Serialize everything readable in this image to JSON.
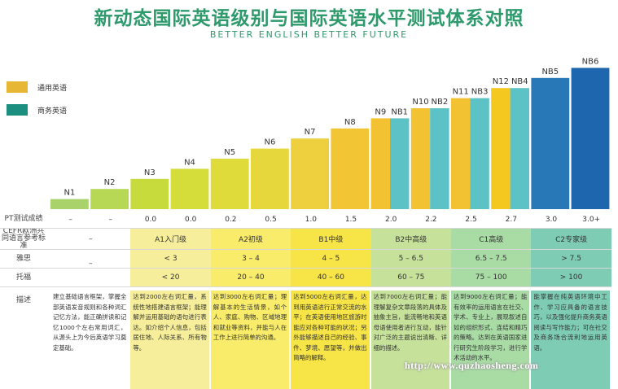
{
  "title": "新动态国际英语级别与国际英语水平测试体系对照",
  "subtitle": "BETTER ENGLISH BETTER FUTURE",
  "legend": [
    {
      "label": "通用英语",
      "color": "#e6b634"
    },
    {
      "label": "商务英语",
      "color": "#1c8f80"
    }
  ],
  "colors": {
    "general": "#e6b634",
    "business": "#5cc2c6",
    "bar_gradient": [
      "#a9d36a",
      "#b7d855",
      "#c8db3c",
      "#d4dd3a",
      "#dedb3a",
      "#e6d83c",
      "#eecf3e",
      "#f2c534",
      "#f3c12e",
      "#f0bb2a",
      "#f2b321",
      "#f5a51b",
      "#f39a1f",
      "#2a73b8",
      "#1a63a8"
    ]
  },
  "chart_data": {
    "type": "bar",
    "title": "新动态国际英语级别与国际英语水平测试体系对照",
    "categories": [
      "N1",
      "N2",
      "N3",
      "N4",
      "N5",
      "N6",
      "N7",
      "N8",
      "N9",
      "NB1",
      "N10",
      "NB2",
      "N11",
      "NB3",
      "N12",
      "NB4",
      "NB5",
      "NB6"
    ],
    "values": [
      1,
      2,
      3,
      4,
      5,
      6,
      7,
      8,
      9,
      9,
      10,
      10,
      11,
      11,
      12,
      12,
      13,
      14
    ],
    "series_type": [
      "general",
      "general",
      "general",
      "general",
      "general",
      "general",
      "general",
      "general",
      "general",
      "business",
      "general",
      "business",
      "general",
      "business",
      "general",
      "business",
      "business",
      "business"
    ],
    "ylim": [
      0,
      14.5
    ]
  },
  "pt_row": {
    "label": "PT测试成绩",
    "values": [
      "–",
      "–",
      "0.0",
      "0.0",
      "0.2",
      "0.5",
      "1.0",
      "1.5",
      "2.0",
      "2.2",
      "2.5",
      "2.7",
      "3.0",
      "3.0+"
    ]
  },
  "cefr_row": {
    "label": "CEFR欧洲共同语言参考标准",
    "values": [
      "–",
      "A1入门级",
      "A2初级",
      "B1中级",
      "B2中高级",
      "C1高级",
      "C2专家级"
    ]
  },
  "ielts_row": {
    "label": "雅思",
    "values": [
      "–",
      "< 3",
      "3 – 4",
      "4 – 5",
      "5 – 6.5",
      "6.5 – 7.5",
      "> 7.5"
    ]
  },
  "toefl_row": {
    "label": "托福",
    "values": [
      "< 20",
      "20 – 40",
      "40 – 60",
      "60 – 75",
      "75 – 100",
      "> 100"
    ]
  },
  "desc_row": {
    "label": "描述",
    "values": [
      "建立基础语言框架，掌握全部英语发音规则和各种词汇记忆方法，能正确拼读和记忆1000个左右常用词汇，从源头上为今后英语学习奠定基础。",
      "达到2000左右词汇量，系统性地搭建语言框架；能理解并运用基础的语句进行表达。如介绍个人信息，包括居住地、人际关系、所有物等。",
      "达到3000左右词汇量；理解基本的生活情景，如个人、家庭、购物、区域地理和就业等资料，并能与人在工作上进行简单的沟通。",
      "达到5000左右词汇量，达到用英语进行正常交流的水平；在英语使用地区旅游时能应对各种可能的状况；另外能够描述自己的经验、事件、梦境、愿望等，并做出简略的解释。",
      "达到7000左右词汇量；能理解复杂文章段落的具体及抽象主旨，能流畅地和英语母语使用者进行互动，能针对广泛的主题说出清晰、详细的描述。",
      "达到9000左右词汇量；能有效率的运用语言在社交、学术、专业上，展现叙述自如的组织形式、连结和精巧的策略。达到在英语国家进行研究生阶段学习，进行学术活动的水平。",
      "能掌握在纯英语环境中工作、学习应具备的语言技巧，以及强化提升商务英语阅读与写作能力；可在社交及商务场合流利地运用英语。"
    ]
  },
  "watermark": "http://www.quzhaosheng.com"
}
